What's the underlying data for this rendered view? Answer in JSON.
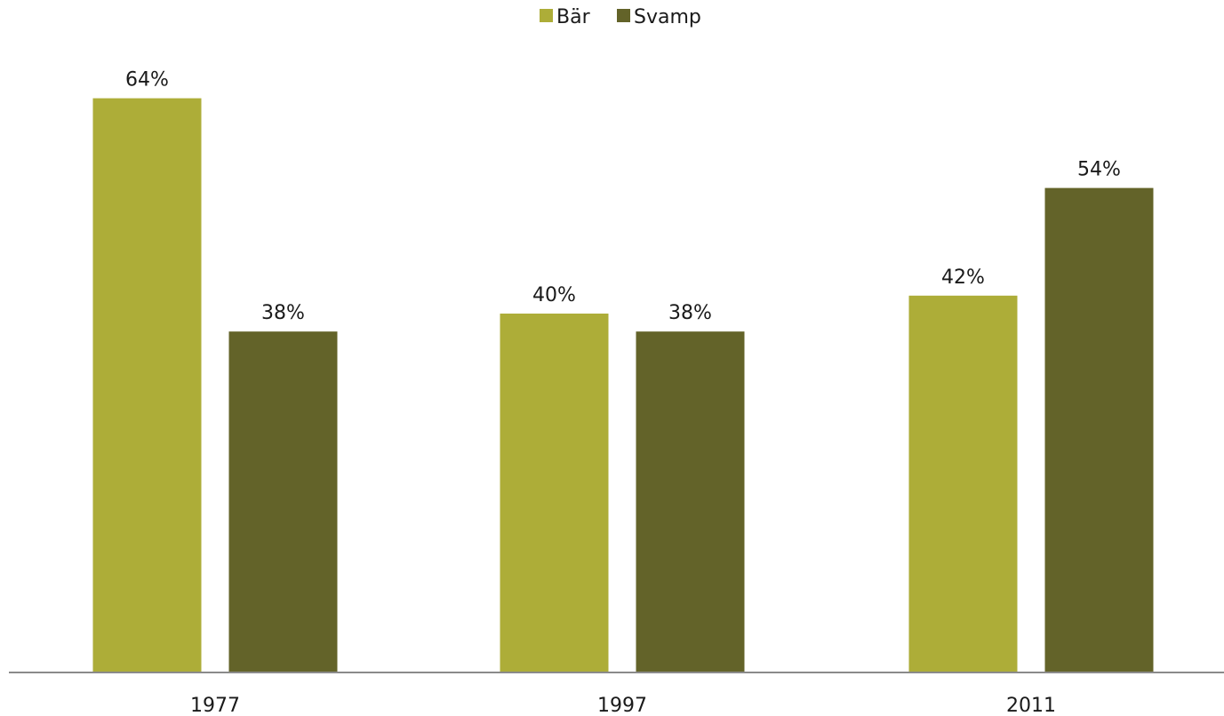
{
  "chart_data": {
    "type": "bar",
    "categories": [
      "1977",
      "1997",
      "2011"
    ],
    "series": [
      {
        "name": "Bär",
        "values": [
          64,
          40,
          42
        ],
        "labels": [
          "64%",
          "40%",
          "42%"
        ],
        "color": "#adad38"
      },
      {
        "name": "Svamp",
        "values": [
          38,
          38,
          54
        ],
        "labels": [
          "38%",
          "38%",
          "54%"
        ],
        "color": "#636329"
      }
    ],
    "ylim": [
      0,
      70
    ],
    "legend_position": "top-center",
    "grid": false
  }
}
